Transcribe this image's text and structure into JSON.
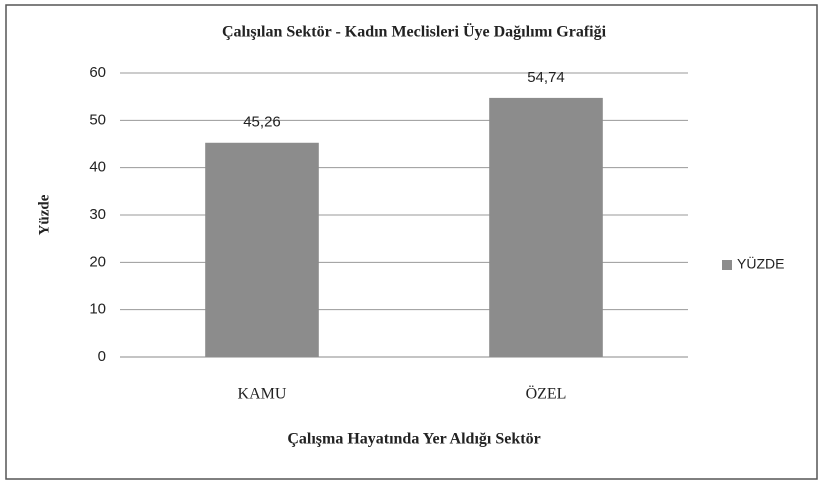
{
  "chart_data": {
    "type": "bar",
    "title": "Çalışılan Sektör - Kadın Meclisleri Üye Dağılımı Grafiği",
    "x_label": "Çalışma Hayatında Yer Aldığı Sektör",
    "y_label": "Yüzde",
    "categories": [
      "KAMU",
      "ÖZEL"
    ],
    "series": [
      {
        "name": "YÜZDE",
        "color": "#8c8c8c",
        "values": [
          45.26,
          54.74
        ],
        "value_labels": [
          "45,26",
          "54,74"
        ]
      }
    ],
    "ylim": [
      0,
      60
    ],
    "yticks": [
      0,
      10,
      20,
      30,
      40,
      50,
      60
    ],
    "grid": true,
    "legend": "right"
  }
}
